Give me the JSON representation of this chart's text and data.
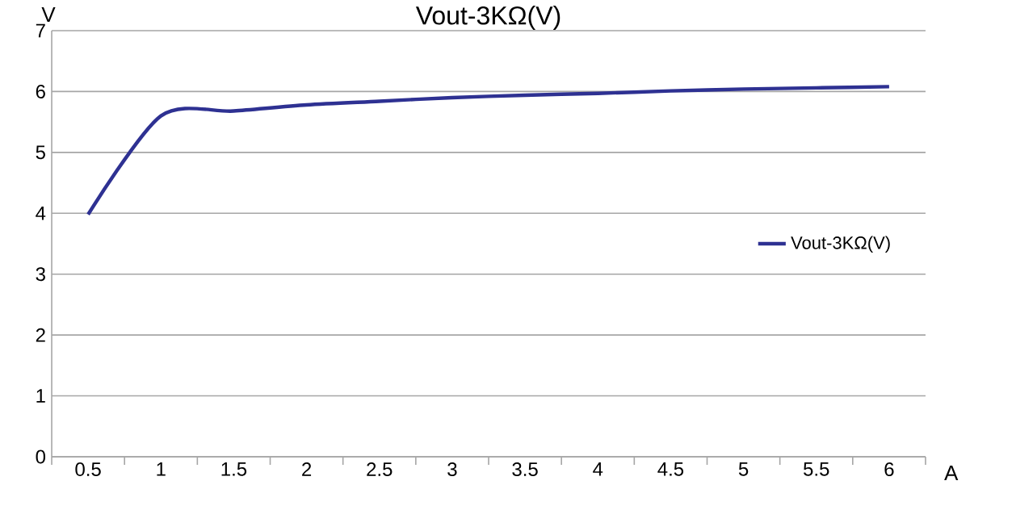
{
  "chart_data": {
    "type": "line",
    "title": "Vout-3KΩ(V)",
    "xlabel": "A",
    "ylabel": "V",
    "categories": [
      "0.5",
      "1",
      "1.5",
      "2",
      "2.5",
      "3",
      "3.5",
      "4",
      "4.5",
      "5",
      "5.5",
      "6"
    ],
    "series": [
      {
        "name": "Vout-3KΩ(V)",
        "color": "#2e3192",
        "values": [
          3.98,
          5.6,
          5.68,
          5.78,
          5.84,
          5.9,
          5.94,
          5.97,
          6.01,
          6.04,
          6.06,
          6.08
        ]
      }
    ],
    "ylim": [
      0,
      7
    ],
    "yticks": [
      0,
      1,
      2,
      3,
      4,
      5,
      6,
      7
    ],
    "grid": "y",
    "legend": "right",
    "marker": "none",
    "line_style": "solid"
  }
}
